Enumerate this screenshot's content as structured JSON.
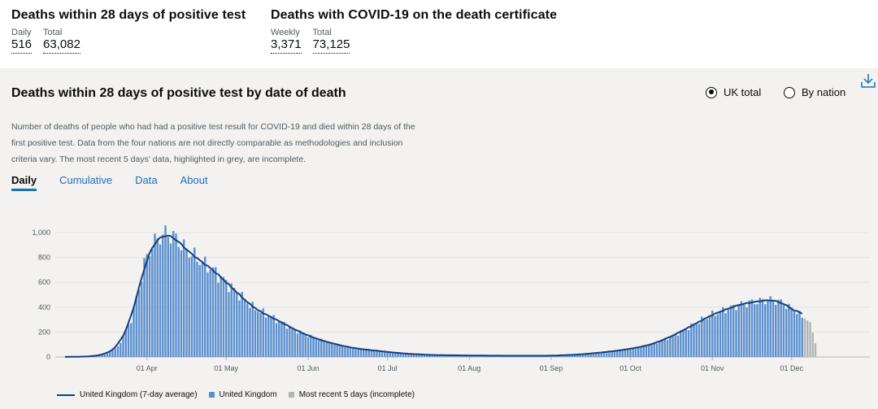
{
  "summary": {
    "left": {
      "title": "Deaths within 28 days of positive test",
      "metrics": [
        {
          "label": "Daily",
          "value": "516"
        },
        {
          "label": "Total",
          "value": "63,082"
        }
      ]
    },
    "right": {
      "title": "Deaths with COVID-19 on the death certificate",
      "metrics": [
        {
          "label": "Weekly",
          "value": "3,371"
        },
        {
          "label": "Total",
          "value": "73,125"
        }
      ]
    }
  },
  "card": {
    "title": "Deaths within 28 days of positive test by date of death",
    "options": [
      {
        "label": "UK total",
        "selected": true
      },
      {
        "label": "By nation",
        "selected": false
      }
    ],
    "description": "Number of deaths of people who had had a positive test result for COVID-19 and died within 28 days of the first positive test. Data from the four nations are not directly comparable as methodologies and inclusion criteria vary. The most recent 5 days' data, highlighted in grey, are incomplete.",
    "tabs": [
      {
        "label": "Daily",
        "active": true
      },
      {
        "label": "Cumulative",
        "active": false
      },
      {
        "label": "Data",
        "active": false
      },
      {
        "label": "About",
        "active": false
      }
    ],
    "download_icon": "download-icon"
  },
  "colors": {
    "bar": "#5b8fcf",
    "line": "#12407f",
    "incomplete": "#b1b4b6",
    "link": "#1d70b8"
  },
  "chart_data": {
    "type": "bar",
    "title": "",
    "xlabel": "",
    "ylabel": "",
    "ylim": [
      0,
      1100
    ],
    "yticks": [
      0,
      200,
      400,
      600,
      800,
      1000
    ],
    "ytick_labels": [
      "0",
      "200",
      "400",
      "600",
      "800",
      "1,000"
    ],
    "xticks": [
      {
        "label": "01 Apr",
        "day": 31
      },
      {
        "label": "01 May",
        "day": 61
      },
      {
        "label": "01 Jun",
        "day": 92
      },
      {
        "label": "01 Jul",
        "day": 122
      },
      {
        "label": "01 Aug",
        "day": 153
      },
      {
        "label": "01 Sep",
        "day": 184
      },
      {
        "label": "01 Oct",
        "day": 214
      },
      {
        "label": "01 Nov",
        "day": 245
      },
      {
        "label": "01 Dec",
        "day": 275
      }
    ],
    "x_start": "01 Mar",
    "series": [
      {
        "name": "United Kingdom (7-day average)",
        "kind": "line"
      },
      {
        "name": "United Kingdom",
        "kind": "bar"
      },
      {
        "name": "Most recent 5 days (incomplete)",
        "kind": "bar"
      }
    ],
    "anchors": [
      [
        0,
        0
      ],
      [
        5,
        2
      ],
      [
        10,
        5
      ],
      [
        15,
        20
      ],
      [
        20,
        80
      ],
      [
        25,
        300
      ],
      [
        28,
        550
      ],
      [
        30,
        750
      ],
      [
        33,
        900
      ],
      [
        36,
        970
      ],
      [
        38,
        990
      ],
      [
        41,
        970
      ],
      [
        45,
        880
      ],
      [
        50,
        790
      ],
      [
        56,
        700
      ],
      [
        61,
        600
      ],
      [
        66,
        500
      ],
      [
        71,
        400
      ],
      [
        76,
        340
      ],
      [
        81,
        290
      ],
      [
        86,
        230
      ],
      [
        91,
        180
      ],
      [
        96,
        140
      ],
      [
        101,
        110
      ],
      [
        106,
        85
      ],
      [
        111,
        65
      ],
      [
        116,
        55
      ],
      [
        122,
        40
      ],
      [
        130,
        25
      ],
      [
        140,
        15
      ],
      [
        153,
        12
      ],
      [
        165,
        10
      ],
      [
        175,
        10
      ],
      [
        184,
        10
      ],
      [
        195,
        20
      ],
      [
        205,
        40
      ],
      [
        214,
        65
      ],
      [
        222,
        100
      ],
      [
        230,
        170
      ],
      [
        238,
        260
      ],
      [
        245,
        340
      ],
      [
        250,
        380
      ],
      [
        255,
        420
      ],
      [
        260,
        440
      ],
      [
        265,
        455
      ],
      [
        268,
        460
      ],
      [
        271,
        440
      ],
      [
        274,
        400
      ],
      [
        276,
        380
      ],
      [
        279,
        320
      ],
      [
        282,
        280
      ],
      [
        284,
        110
      ]
    ],
    "incomplete_days": 5,
    "last_day": 284,
    "legend_position": "bottom-left"
  }
}
